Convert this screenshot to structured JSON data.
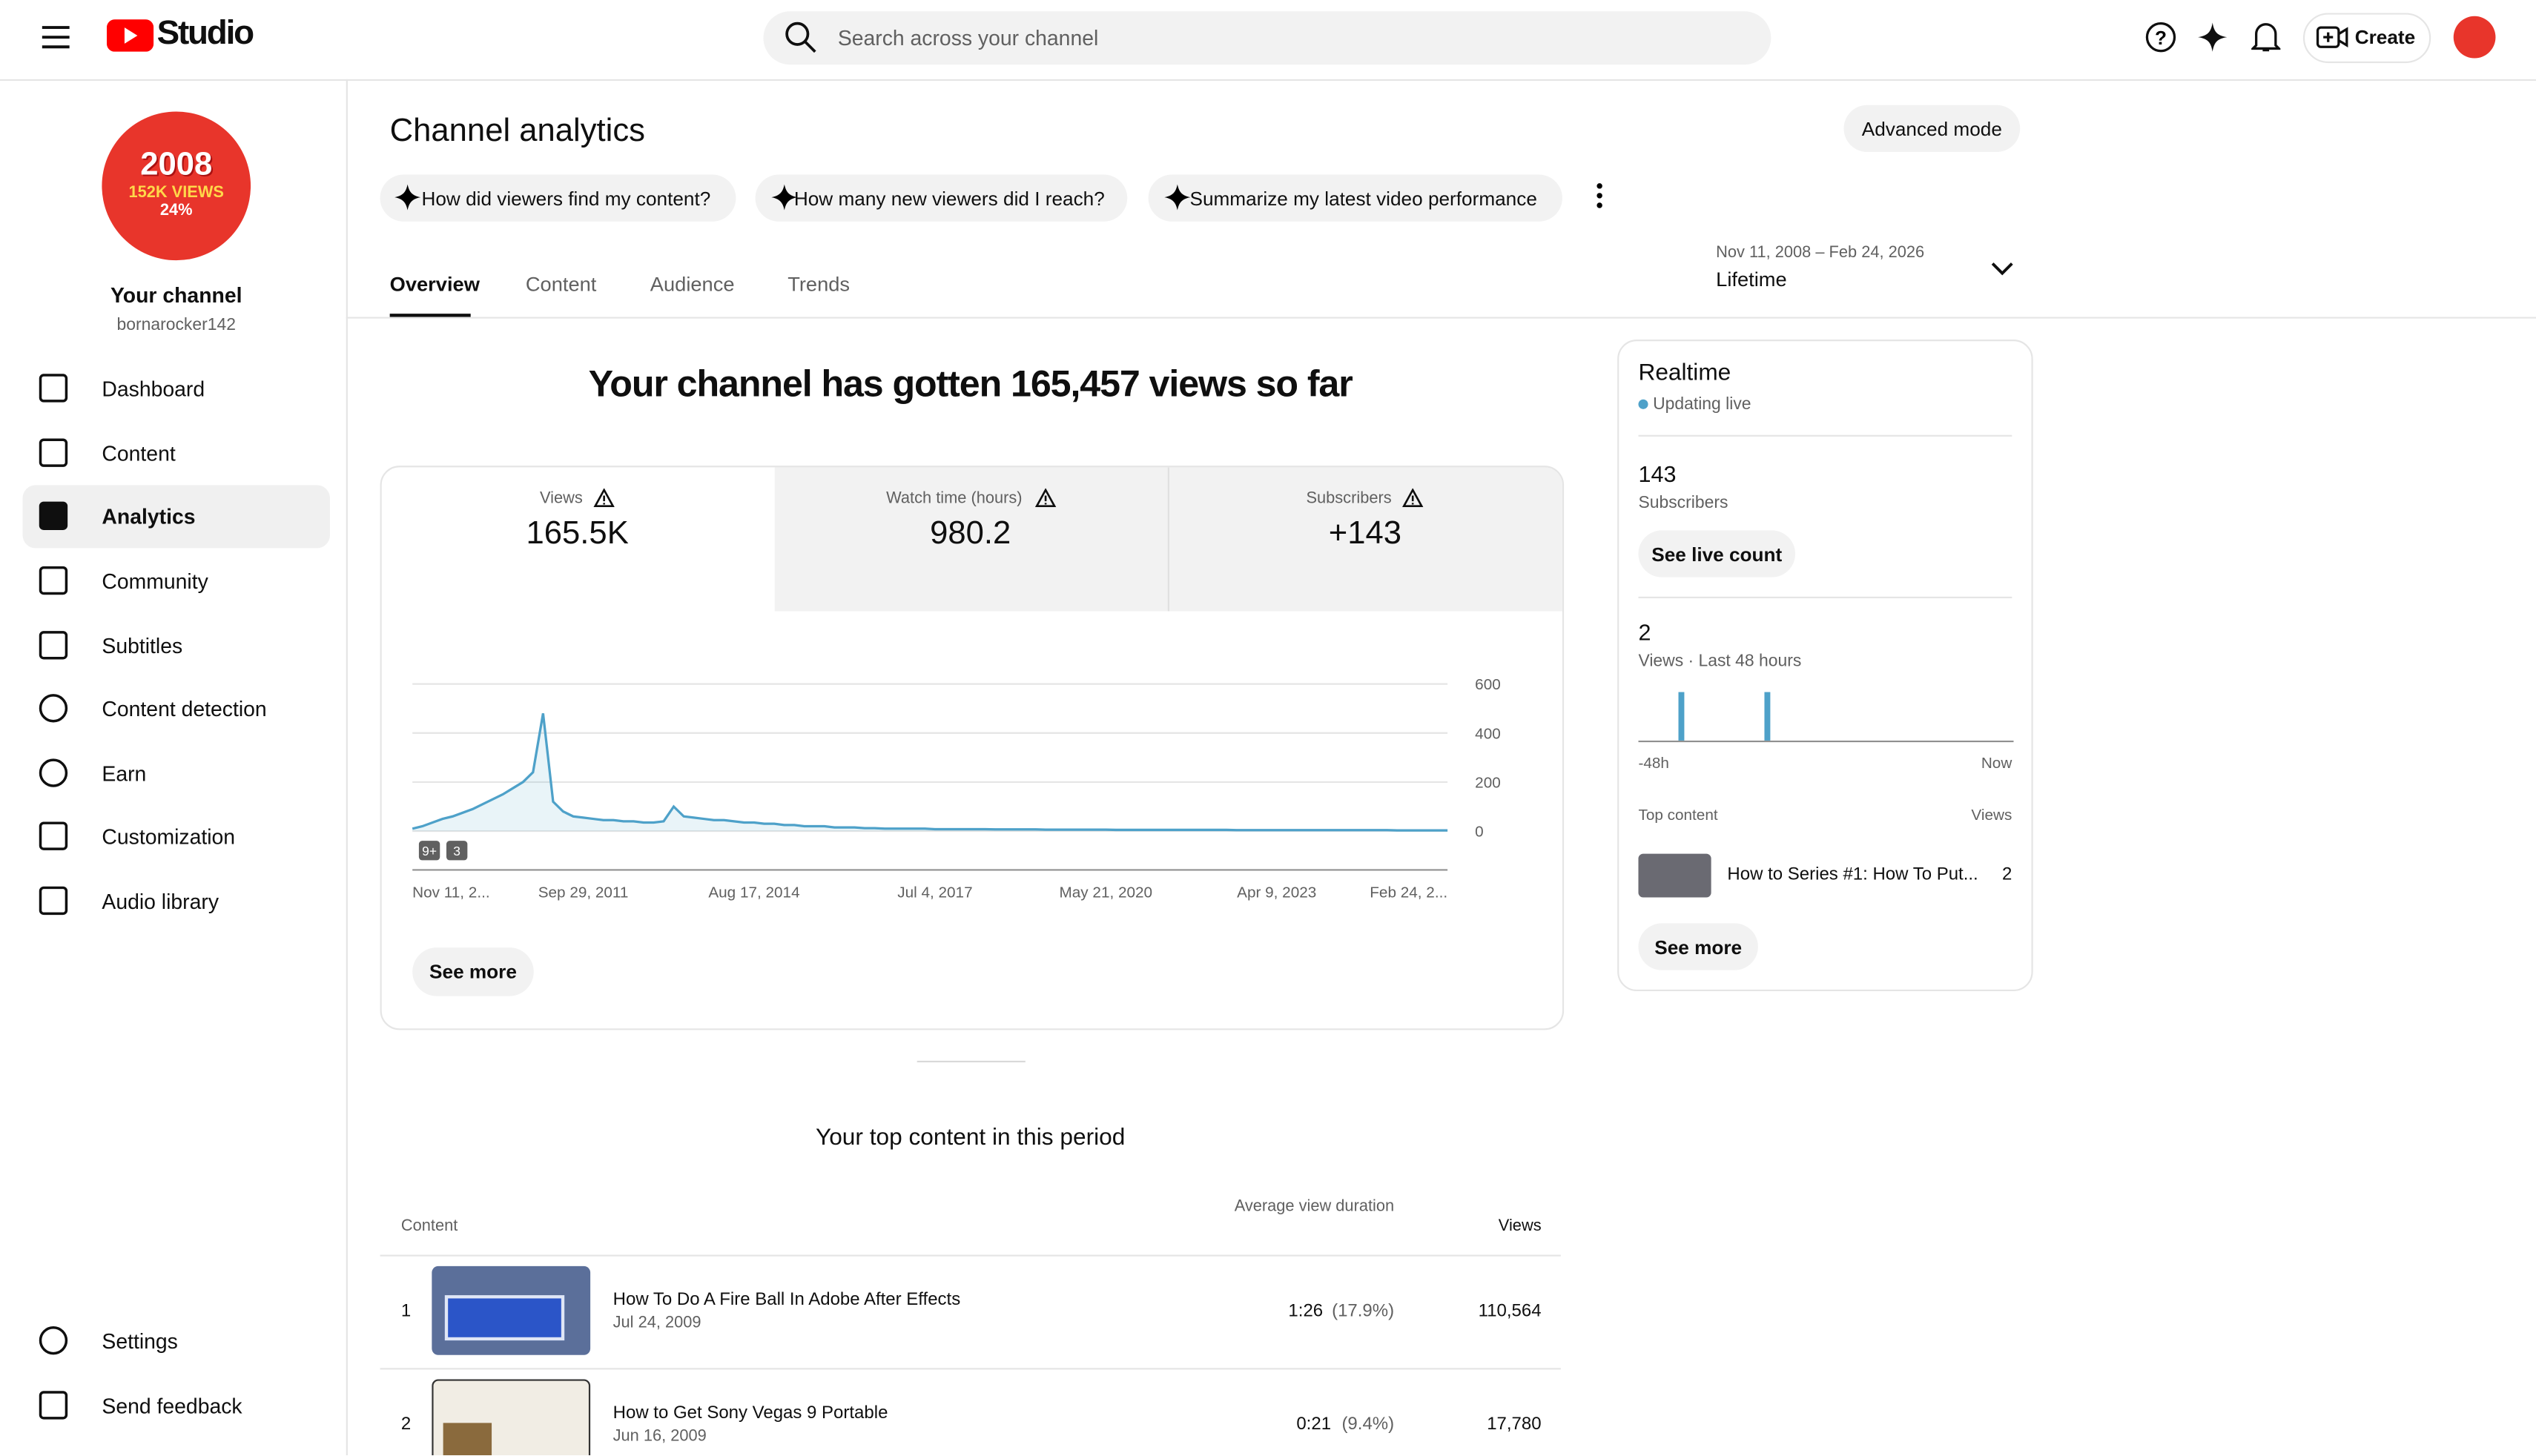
{
  "header": {
    "logo": "Studio",
    "search_placeholder": "Search across your channel",
    "create": "Create"
  },
  "channel": {
    "avatar_lines": [
      "2008",
      "152K VIEWS",
      "24%"
    ],
    "name": "Your channel",
    "handle": "bornarocker142"
  },
  "nav": {
    "items": [
      "Dashboard",
      "Content",
      "Analytics",
      "Community",
      "Subtitles",
      "Content detection",
      "Earn",
      "Customization",
      "Audio library"
    ],
    "footer": [
      "Settings",
      "Send feedback"
    ]
  },
  "page": {
    "title": "Channel analytics",
    "advanced_button": "Advanced mode",
    "prompts": [
      "How did viewers find my content?",
      "How many new viewers did I reach?",
      "Summarize my latest video performance"
    ],
    "tabs": [
      "Overview",
      "Content",
      "Audience",
      "Trends"
    ],
    "date_range": "Nov 11, 2008 – Feb 24, 2026",
    "period": "Lifetime"
  },
  "overview": {
    "headline": "Your channel has gotten 165,457 views so far",
    "metrics": [
      {
        "label": "Views",
        "value": "165.5K"
      },
      {
        "label": "Watch time (hours)",
        "value": "980.2"
      },
      {
        "label": "Subscribers",
        "value": "+143"
      }
    ],
    "badges": [
      "9+",
      "3"
    ],
    "see_more": "See more"
  },
  "chart_data": {
    "type": "line",
    "color": "#4ea1c9",
    "ylim": [
      0,
      600
    ],
    "yticks": [
      0,
      200,
      400,
      600
    ],
    "grid": true,
    "categories": [
      "Nov 11, 2...",
      null,
      null,
      null,
      null,
      null,
      null,
      null,
      null,
      null,
      null,
      null,
      null,
      null,
      null,
      null,
      null,
      "Sep 29, 2011",
      null,
      null,
      null,
      null,
      null,
      null,
      null,
      null,
      null,
      null,
      null,
      null,
      null,
      null,
      null,
      null,
      "Aug 17, 2014",
      null,
      null,
      null,
      null,
      null,
      null,
      null,
      null,
      null,
      null,
      null,
      null,
      null,
      null,
      null,
      null,
      null,
      "Jul 4, 2017",
      null,
      null,
      null,
      null,
      null,
      null,
      null,
      null,
      null,
      null,
      null,
      null,
      null,
      null,
      null,
      null,
      "May 21, 2020",
      null,
      null,
      null,
      null,
      null,
      null,
      null,
      null,
      null,
      null,
      null,
      null,
      null,
      null,
      null,
      null,
      "Apr 9, 2023",
      null,
      null,
      null,
      null,
      null,
      null,
      null,
      null,
      null,
      null,
      null,
      null,
      null,
      null,
      null,
      null,
      "Feb 24, 2..."
    ],
    "values": [
      10,
      20,
      35,
      50,
      60,
      75,
      90,
      110,
      130,
      150,
      175,
      200,
      240,
      480,
      120,
      80,
      60,
      55,
      50,
      45,
      45,
      40,
      40,
      35,
      35,
      40,
      100,
      60,
      55,
      50,
      45,
      45,
      40,
      35,
      35,
      30,
      30,
      25,
      25,
      20,
      20,
      20,
      15,
      15,
      15,
      12,
      12,
      10,
      10,
      10,
      10,
      10,
      8,
      8,
      8,
      8,
      8,
      8,
      7,
      7,
      7,
      7,
      7,
      6,
      6,
      6,
      6,
      6,
      6,
      6,
      5,
      5,
      5,
      5,
      5,
      5,
      5,
      5,
      5,
      5,
      5,
      5,
      4,
      4,
      4,
      4,
      4,
      4,
      4,
      4,
      4,
      4,
      4,
      4,
      4,
      4,
      4,
      4,
      3,
      3,
      3,
      3,
      3,
      3
    ]
  },
  "realtime": {
    "title": "Realtime",
    "status": "Updating live",
    "subscribers": {
      "value": "143",
      "label": "Subscribers"
    },
    "live_button": "See live count",
    "views": {
      "value": "2",
      "label": "Views · Last 48 hours"
    },
    "chart": {
      "values": [
        0,
        0,
        0,
        0,
        0,
        1,
        0,
        0,
        0,
        0,
        0,
        0,
        0,
        0,
        0,
        0,
        1,
        0,
        0,
        0,
        0,
        0,
        0,
        0,
        0,
        0,
        0,
        0,
        0,
        0,
        0,
        0,
        0,
        0,
        0,
        0,
        0,
        0,
        0,
        0,
        0,
        0,
        0,
        0,
        0,
        0,
        0,
        0
      ],
      "x_labels": [
        "-48h",
        "Now"
      ]
    },
    "top_content": {
      "header": "Top content",
      "views_header": "Views",
      "items": [
        {
          "title": "How to Series #1: How To Put...",
          "views": "2"
        }
      ]
    },
    "see_more": "See more"
  },
  "top_content_table": {
    "title": "Your top content in this period",
    "columns": [
      "Content",
      "Average view duration",
      "Views"
    ],
    "rows": [
      {
        "rank": "1",
        "title": "How To Do A Fire Ball In Adobe After Effects",
        "date": "Jul 24, 2009",
        "duration": "1:26",
        "percent": "(17.9%)",
        "views": "110,564"
      },
      {
        "rank": "2",
        "title": "How to Get Sony Vegas 9 Portable",
        "date": "Jun 16, 2009",
        "duration": "0:21",
        "percent": "(9.4%)",
        "views": "17,780"
      }
    ]
  }
}
